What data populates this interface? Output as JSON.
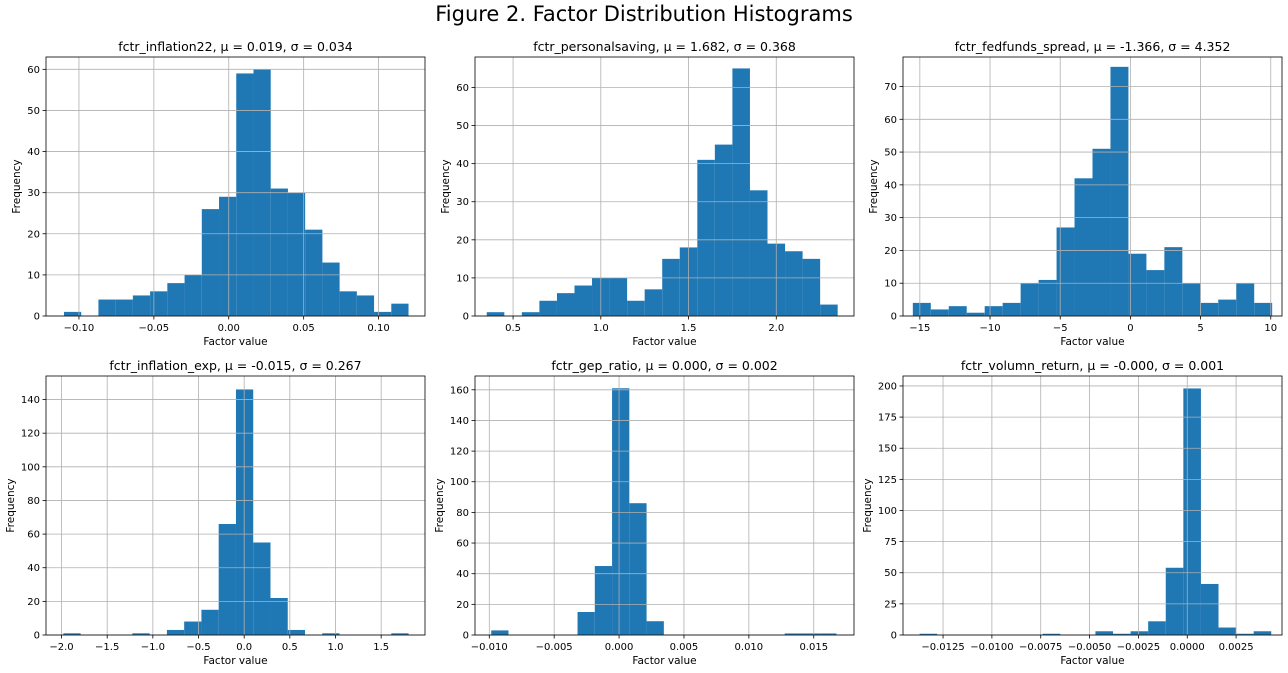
{
  "title": "Figure 2. Factor Distribution Histograms",
  "chart_data": [
    {
      "type": "bar",
      "title": "fctr_inflation22, μ = 0.019, σ = 0.034",
      "xlabel": "Factor value",
      "ylabel": "Frequency",
      "xlim": [
        -0.122,
        0.131
      ],
      "ylim": [
        0,
        63
      ],
      "xticks": [
        -0.1,
        -0.05,
        0.0,
        0.05,
        0.1
      ],
      "xtick_labels": [
        "−0.10",
        "−0.05",
        "0.00",
        "0.05",
        "0.10"
      ],
      "yticks": [
        0,
        10,
        20,
        30,
        40,
        50,
        60
      ],
      "grid": true,
      "color": "#1f77b4",
      "bin_edges": [
        -0.11,
        -0.0985,
        -0.087,
        -0.0755,
        -0.064,
        -0.0525,
        -0.041,
        -0.0295,
        -0.018,
        -0.0065,
        0.005,
        0.0165,
        0.028,
        0.0395,
        0.051,
        0.0625,
        0.074,
        0.0855,
        0.097,
        0.1085,
        0.12
      ],
      "counts": [
        1,
        0,
        4,
        4,
        5,
        6,
        8,
        10,
        26,
        29,
        59,
        60,
        31,
        30,
        21,
        13,
        6,
        5,
        1,
        3
      ]
    },
    {
      "type": "bar",
      "title": "fctr_personalsaving, μ = 1.682, σ = 0.368",
      "xlabel": "Factor value",
      "ylabel": "Frequency",
      "xlim": [
        0.283,
        2.443
      ],
      "ylim": [
        0,
        68
      ],
      "xticks": [
        0.5,
        1.0,
        1.5,
        2.0
      ],
      "xtick_labels": [
        "0.5",
        "1.0",
        "1.5",
        "2.0"
      ],
      "yticks": [
        0,
        10,
        20,
        30,
        40,
        50,
        60
      ],
      "grid": true,
      "color": "#1f77b4",
      "bin_edges": [
        0.35,
        0.45,
        0.55,
        0.65,
        0.75,
        0.85,
        0.95,
        1.05,
        1.15,
        1.25,
        1.35,
        1.45,
        1.55,
        1.65,
        1.75,
        1.85,
        1.95,
        2.05,
        2.15,
        2.25,
        2.35
      ],
      "counts": [
        1,
        0,
        1,
        4,
        6,
        8,
        10,
        10,
        4,
        7,
        15,
        18,
        41,
        45,
        65,
        33,
        19,
        17,
        15,
        3
      ]
    },
    {
      "type": "bar",
      "title": "fctr_fedfunds_spread, μ = -1.366, σ = 4.352",
      "xlabel": "Factor value",
      "ylabel": "Frequency",
      "xlim": [
        -16.2,
        10.8
      ],
      "ylim": [
        0,
        79
      ],
      "xticks": [
        -15,
        -10,
        -5,
        0,
        5,
        10
      ],
      "xtick_labels": [
        "−15",
        "−10",
        "−5",
        "0",
        "5",
        "10"
      ],
      "yticks": [
        0,
        10,
        20,
        30,
        40,
        50,
        60,
        70
      ],
      "grid": true,
      "color": "#1f77b4",
      "bin_edges": [
        -15.5,
        -14.22,
        -12.94,
        -11.66,
        -10.38,
        -9.1,
        -7.82,
        -6.54,
        -5.26,
        -3.98,
        -2.7,
        -1.42,
        -0.14,
        1.14,
        2.42,
        3.7,
        4.98,
        6.26,
        7.54,
        8.82,
        10.1
      ],
      "counts": [
        4,
        2,
        3,
        1,
        3,
        4,
        10,
        11,
        27,
        42,
        51,
        76,
        19,
        14,
        21,
        10,
        4,
        5,
        10,
        4
      ]
    },
    {
      "type": "bar",
      "title": "fctr_inflation_exp, μ = -0.015, σ = 0.267",
      "xlabel": "Factor value",
      "ylabel": "Frequency",
      "xlim": [
        -2.17,
        1.98
      ],
      "ylim": [
        0,
        154
      ],
      "xticks": [
        -2.0,
        -1.5,
        -1.0,
        -0.5,
        0.0,
        0.5,
        1.0,
        1.5
      ],
      "xtick_labels": [
        "−2.0",
        "−1.5",
        "−1.0",
        "−0.5",
        "0.0",
        "0.5",
        "1.0",
        "1.5"
      ],
      "yticks": [
        0,
        20,
        40,
        60,
        80,
        100,
        120,
        140
      ],
      "grid": true,
      "color": "#1f77b4",
      "bin_edges": [
        -1.98,
        -1.791,
        -1.602,
        -1.413,
        -1.224,
        -1.035,
        -0.846,
        -0.657,
        -0.468,
        -0.279,
        -0.09,
        0.099,
        0.288,
        0.477,
        0.666,
        0.855,
        1.044,
        1.233,
        1.422,
        1.611,
        1.8
      ],
      "counts": [
        1,
        0,
        0,
        0,
        1,
        0,
        3,
        8,
        15,
        66,
        146,
        55,
        22,
        3,
        0,
        1,
        0,
        0,
        0,
        1
      ]
    },
    {
      "type": "bar",
      "title": "fctr_gep_ratio, μ = 0.000, σ = 0.002",
      "xlabel": "Factor value",
      "ylabel": "Frequency",
      "xlim": [
        -0.0111,
        0.0181
      ],
      "ylim": [
        0,
        169
      ],
      "xticks": [
        -0.01,
        -0.005,
        0.0,
        0.005,
        0.01,
        0.015
      ],
      "xtick_labels": [
        "−0.010",
        "−0.005",
        "0.000",
        "0.005",
        "0.010",
        "0.015"
      ],
      "yticks": [
        0,
        20,
        40,
        60,
        80,
        100,
        120,
        140,
        160
      ],
      "grid": true,
      "color": "#1f77b4",
      "bin_edges": [
        -0.00985,
        -0.00852,
        -0.00719,
        -0.00586,
        -0.00453,
        -0.0032,
        -0.00187,
        -0.00054,
        0.00079,
        0.00212,
        0.00345,
        0.00478,
        0.00611,
        0.00744,
        0.00877,
        0.0101,
        0.01143,
        0.01276,
        0.01409,
        0.01542,
        0.01675
      ],
      "counts": [
        3,
        0,
        0,
        0,
        0,
        15,
        45,
        161,
        86,
        9,
        0,
        0,
        0,
        0,
        0,
        0,
        0,
        1,
        1,
        1
      ]
    },
    {
      "type": "bar",
      "title": "fctr_volumn_return, μ = -0.000, σ = 0.001",
      "xlabel": "Factor value",
      "ylabel": "Frequency",
      "xlim": [
        -0.01455,
        0.00485
      ],
      "ylim": [
        0,
        208
      ],
      "xticks": [
        -0.0125,
        -0.01,
        -0.0075,
        -0.005,
        -0.0025,
        0.0,
        0.0025
      ],
      "xtick_labels": [
        "−0.0125",
        "−0.0100",
        "−0.0075",
        "−0.0050",
        "−0.0025",
        "0.0000",
        "0.0025"
      ],
      "yticks": [
        0,
        25,
        50,
        75,
        100,
        125,
        150,
        175,
        200
      ],
      "grid": true,
      "color": "#1f77b4",
      "bin_edges": [
        -0.0137,
        -0.0128,
        -0.0119,
        -0.011,
        -0.0101,
        -0.0092,
        -0.0083,
        -0.0074,
        -0.0065,
        -0.0056,
        -0.0047,
        -0.0038,
        -0.0029,
        -0.002,
        -0.0011,
        -0.0002,
        0.0007,
        0.0016,
        0.0025,
        0.0034,
        0.0043
      ],
      "counts": [
        1,
        0,
        0,
        0,
        0,
        0,
        0,
        1,
        0,
        0,
        3,
        1,
        3,
        11,
        54,
        198,
        41,
        6,
        1,
        3
      ]
    }
  ]
}
